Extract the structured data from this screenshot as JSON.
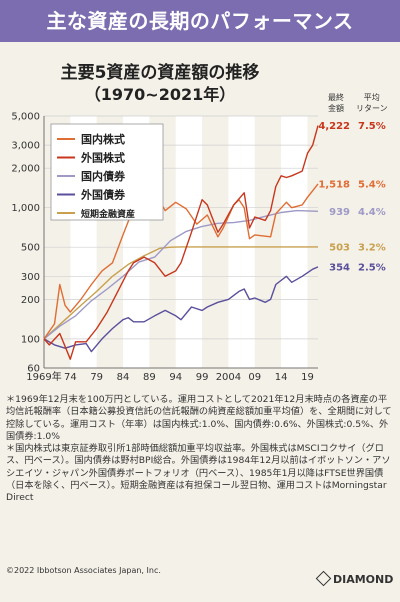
{
  "banner": "主な資産の長期のパフォーマンス",
  "title": "主要5資産の資産額の推移",
  "subtitle": "（1970~2021年）",
  "column_headers": {
    "final_amount": [
      "最終",
      "金額"
    ],
    "avg_return": [
      "平均",
      "リターン"
    ]
  },
  "colors": {
    "domestic_stock": "#e06d34",
    "foreign_stock": "#c8361c",
    "domestic_bond": "#9e99c6",
    "foreign_bond": "#5a4f9c",
    "short_term": "#c8a04e",
    "banner": "#7b6db0",
    "plot_bg": "#f4f1e8",
    "band": "#ffffff"
  },
  "chart_data": {
    "type": "line",
    "y_scale": "log",
    "ylim": [
      60,
      5000
    ],
    "xlim": [
      1969,
      2021
    ],
    "y_ticks": [
      60,
      100,
      200,
      300,
      500,
      1000,
      2000,
      3000,
      5000
    ],
    "y_tick_labels": [
      "60",
      "100",
      "200",
      "300",
      "500",
      "1,000",
      "2,000",
      "3,000",
      "5,000"
    ],
    "x_ticks": [
      1969,
      1974,
      1979,
      1984,
      1989,
      1994,
      1999,
      2004,
      2009,
      2014,
      2019
    ],
    "x_tick_labels": [
      "1969年",
      "74",
      "79",
      "84",
      "89",
      "94",
      "99",
      "2004",
      "09",
      "14",
      "19"
    ],
    "grid": true,
    "legend_position": "top-left",
    "series": [
      {
        "key": "domestic_stock",
        "name": "国内株式",
        "final": "1,518",
        "return": "5.4%",
        "x": [
          1969,
          1971,
          1972,
          1973,
          1974,
          1976,
          1978,
          1980,
          1982,
          1984,
          1986,
          1988,
          1989,
          1990,
          1992,
          1994,
          1996,
          1998,
          2000,
          2002,
          2003,
          2005,
          2006,
          2007,
          2008,
          2009,
          2012,
          2013,
          2015,
          2016,
          2018,
          2019,
          2021
        ],
        "y": [
          100,
          130,
          260,
          180,
          160,
          200,
          260,
          330,
          380,
          620,
          1000,
          1500,
          1900,
          1300,
          950,
          1100,
          980,
          750,
          880,
          600,
          700,
          1050,
          1150,
          1000,
          580,
          620,
          600,
          900,
          1100,
          1000,
          1050,
          1200,
          1518
        ]
      },
      {
        "key": "foreign_stock",
        "name": "外国株式",
        "final": "4,222",
        "return": "7.5%",
        "x": [
          1969,
          1970,
          1972,
          1974,
          1975,
          1977,
          1979,
          1981,
          1983,
          1985,
          1986,
          1988,
          1990,
          1992,
          1994,
          1995,
          1997,
          1999,
          2000,
          2002,
          2003,
          2005,
          2007,
          2008,
          2009,
          2011,
          2012,
          2013,
          2014,
          2015,
          2016,
          2018,
          2019,
          2020,
          2021
        ],
        "y": [
          100,
          90,
          110,
          70,
          95,
          95,
          120,
          160,
          230,
          330,
          380,
          420,
          380,
          300,
          330,
          380,
          650,
          1150,
          1050,
          650,
          750,
          1050,
          1300,
          700,
          850,
          800,
          950,
          1450,
          1750,
          1700,
          1750,
          1900,
          2600,
          3000,
          4222
        ]
      },
      {
        "key": "domestic_bond",
        "name": "国内債券",
        "final": "939",
        "return": "4.4%",
        "x": [
          1969,
          1972,
          1975,
          1978,
          1981,
          1984,
          1987,
          1990,
          1993,
          1996,
          1999,
          2002,
          2005,
          2008,
          2011,
          2014,
          2017,
          2021
        ],
        "y": [
          100,
          125,
          150,
          195,
          240,
          300,
          385,
          420,
          560,
          660,
          720,
          760,
          770,
          800,
          860,
          920,
          950,
          939
        ]
      },
      {
        "key": "foreign_bond",
        "name": "外国債券",
        "final": "354",
        "return": "2.5%",
        "x": [
          1969,
          1971,
          1973,
          1975,
          1977,
          1978,
          1980,
          1982,
          1984,
          1985,
          1986,
          1988,
          1990,
          1992,
          1994,
          1995,
          1997,
          1999,
          2000,
          2002,
          2004,
          2006,
          2007,
          2008,
          2009,
          2011,
          2012,
          2013,
          2015,
          2016,
          2018,
          2020,
          2021
        ],
        "y": [
          100,
          90,
          85,
          90,
          92,
          80,
          100,
          120,
          140,
          145,
          135,
          135,
          150,
          165,
          150,
          140,
          175,
          165,
          175,
          190,
          200,
          230,
          240,
          200,
          205,
          190,
          200,
          260,
          300,
          270,
          300,
          340,
          354
        ]
      },
      {
        "key": "short_term",
        "name": "短期金融資産",
        "final": "503",
        "return": "3.2%",
        "x": [
          1969,
          1973,
          1976,
          1979,
          1982,
          1985,
          1988,
          1991,
          1993,
          1995,
          1997,
          1999,
          2005,
          2010,
          2015,
          2021
        ],
        "y": [
          100,
          140,
          180,
          230,
          300,
          370,
          430,
          490,
          500,
          503,
          503,
          503,
          503,
          503,
          503,
          503
        ]
      }
    ]
  },
  "notes": [
    "＊1969年12月末を100万円としている。運用コストとして2021年12月末時点の各資産の平均信託報酬率（日本籍公募投資信託の信託報酬の純資産総額加重平均値）を、全期間に対して控除している。運用コスト（年率）は国内株式:1.0%、国内債券:0.6%、外国株式:0.5%、外国債券:1.0%",
    "＊国内株式は東京証券取引所1部時価総額加重平均収益率。外国株式はMSCIコクサイ（グロス、円ベース）。国内債券は野村BPI総合。外国債券は1984年12月以前はイボットソン・アソシエイツ・ジャパン外国債券ポートフォリオ（円ベース）、1985年1月以降はFTSE世界国債（日本を除く、円ベース）。短期金融資産は有担保コール翌日物、運用コストはMorningstar Direct"
  ],
  "copyright": "©2022 Ibbotson Associates Japan, Inc.",
  "brand": "DIAMOND"
}
